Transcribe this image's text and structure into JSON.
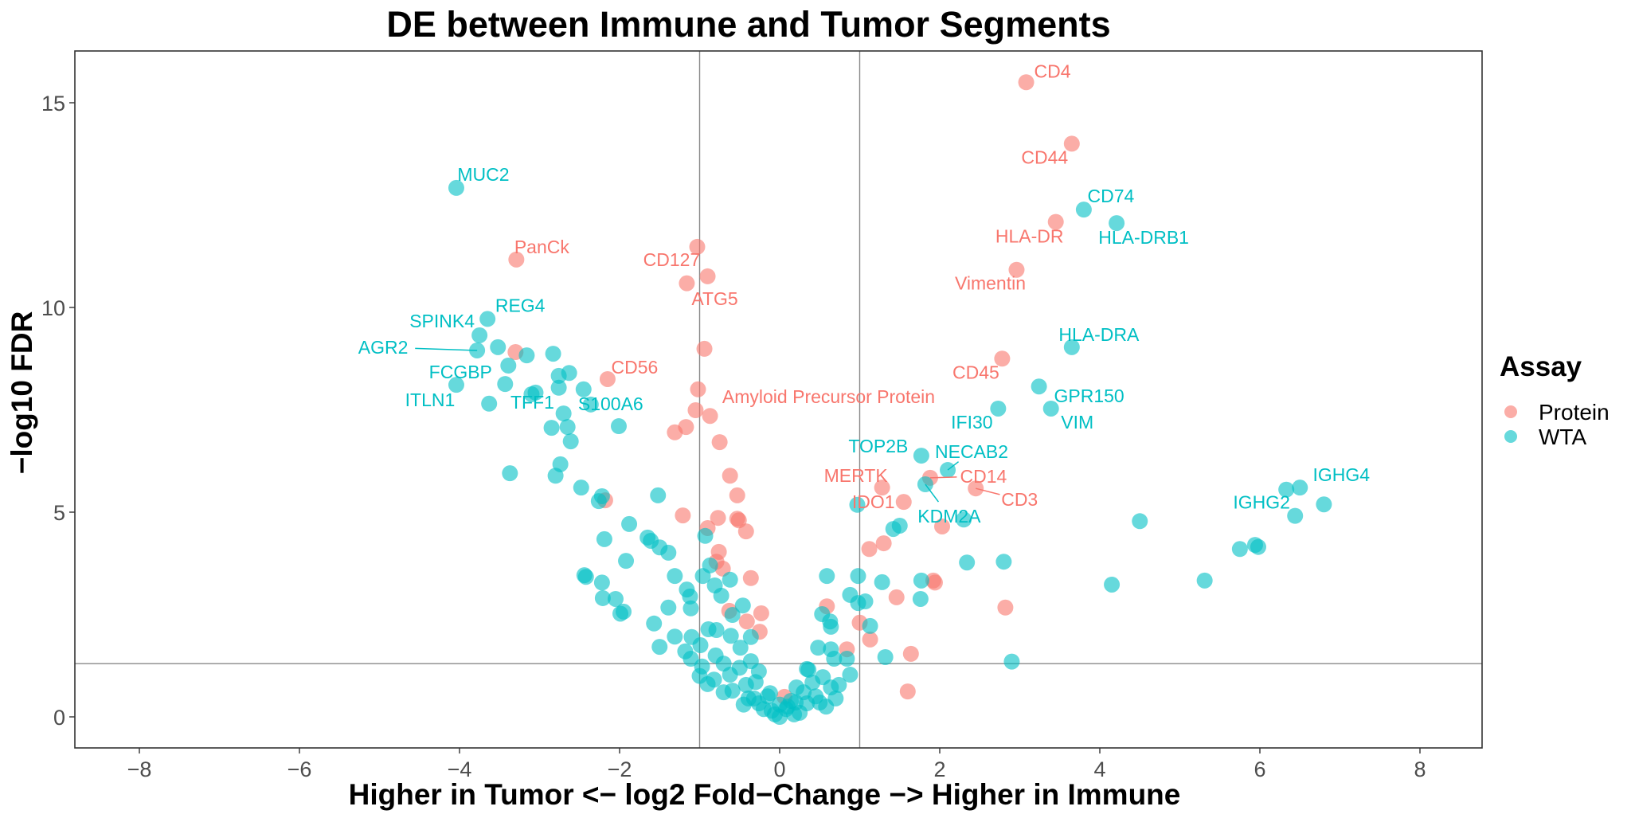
{
  "chart_data": {
    "type": "scatter",
    "title": "DE between Immune and Tumor Segments",
    "xlabel": "Higher in Tumor <− log2 Fold−Change −> Higher in Immune",
    "ylabel": "−log10 FDR",
    "xlim": [
      -8.8,
      8.78
    ],
    "ylim": [
      -0.76,
      16.26
    ],
    "xticks": [
      -8,
      -6,
      -4,
      -2,
      0,
      2,
      4,
      6,
      8
    ],
    "xtick_labels": [
      "−8",
      "−6",
      "−4",
      "−2",
      "0",
      "2",
      "4",
      "6",
      "8"
    ],
    "yticks": [
      0,
      5,
      10,
      15
    ],
    "ytick_labels": [
      "0",
      "5",
      "10",
      "15"
    ],
    "grid": false,
    "vlines": [
      -1,
      1
    ],
    "hline": 1.3,
    "legend": {
      "title": "Assay",
      "placement": "right",
      "entries": [
        "Protein",
        "WTA"
      ]
    },
    "series": [
      {
        "name": "Protein",
        "color": "#F8766D",
        "points": [
          [
            3.08,
            15.5,
            "CD4"
          ],
          [
            3.65,
            14.0,
            "CD44"
          ],
          [
            3.45,
            12.09,
            "HLA-DR"
          ],
          [
            2.96,
            10.92,
            "Vimentin"
          ],
          [
            2.78,
            8.75,
            "CD45"
          ],
          [
            -3.29,
            11.17,
            "PanCk"
          ],
          [
            -1.03,
            11.48,
            "CD127"
          ],
          [
            -0.9,
            10.76,
            "ATG5"
          ],
          [
            -1.16,
            10.59
          ],
          [
            -0.94,
            8.99
          ],
          [
            -2.15,
            8.25,
            "CD56"
          ],
          [
            -3.3,
            8.91
          ],
          [
            -1.02,
            8.0,
            "Amyloid Precursor Protein"
          ],
          [
            -1.05,
            7.49
          ],
          [
            -0.87,
            7.35
          ],
          [
            -1.17,
            7.08
          ],
          [
            -1.31,
            6.95
          ],
          [
            -0.75,
            6.71
          ],
          [
            -0.62,
            5.89
          ],
          [
            -0.53,
            5.41
          ],
          [
            -2.18,
            5.29
          ],
          [
            -1.21,
            4.92
          ],
          [
            -0.77,
            4.86
          ],
          [
            -0.53,
            4.84
          ],
          [
            -0.51,
            4.8
          ],
          [
            -0.9,
            4.61
          ],
          [
            -0.42,
            4.53
          ],
          [
            -0.76,
            4.03
          ],
          [
            -0.79,
            3.79
          ],
          [
            -0.71,
            3.62
          ],
          [
            -0.36,
            3.39
          ],
          [
            -0.63,
            2.59
          ],
          [
            -0.23,
            2.53
          ],
          [
            -0.41,
            2.33
          ],
          [
            -0.25,
            2.08
          ],
          [
            0.06,
            0.49
          ],
          [
            1.28,
            5.6,
            "MERTK"
          ],
          [
            1.55,
            5.25,
            "IDO1"
          ],
          [
            1.88,
            5.84,
            "CD14"
          ],
          [
            2.45,
            5.58,
            "CD3"
          ],
          [
            2.03,
            4.65
          ],
          [
            1.3,
            4.24
          ],
          [
            1.12,
            4.1
          ],
          [
            1.92,
            3.33
          ],
          [
            1.94,
            3.28
          ],
          [
            1.46,
            2.92
          ],
          [
            0.59,
            2.7
          ],
          [
            1.0,
            2.3
          ],
          [
            1.13,
            1.89
          ],
          [
            1.64,
            1.54
          ],
          [
            1.6,
            0.62
          ],
          [
            0.84,
            1.65
          ],
          [
            2.82,
            2.67
          ]
        ]
      },
      {
        "name": "WTA",
        "color": "#00BFC4",
        "points": [
          [
            -4.04,
            12.92,
            "MUC2"
          ],
          [
            -3.65,
            9.72,
            "REG4"
          ],
          [
            -3.75,
            9.32,
            "SPINK4"
          ],
          [
            -3.78,
            8.95,
            "AGR2"
          ],
          [
            -3.43,
            8.13,
            "FCGBP"
          ],
          [
            -4.04,
            8.11,
            "ITLN1"
          ],
          [
            -3.05,
            7.92,
            "TFF1"
          ],
          [
            -2.36,
            7.63,
            "S100A6"
          ],
          [
            3.8,
            12.39,
            "CD74"
          ],
          [
            4.21,
            12.06,
            "HLA-DRB1"
          ],
          [
            3.65,
            9.03,
            "HLA-DRA"
          ],
          [
            3.24,
            8.07,
            "GPR150"
          ],
          [
            3.39,
            7.53,
            "VIM"
          ],
          [
            2.73,
            7.53,
            "IFI30"
          ],
          [
            1.77,
            6.38,
            "TOP2B"
          ],
          [
            2.1,
            6.03,
            "NECAB2"
          ],
          [
            1.82,
            5.68,
            "KDM2A"
          ],
          [
            6.5,
            5.6,
            "IGHG4"
          ],
          [
            6.33,
            5.55,
            "IGHG2"
          ],
          [
            -3.52,
            9.03
          ],
          [
            -3.16,
            8.83
          ],
          [
            -2.83,
            8.87
          ],
          [
            -3.39,
            8.58
          ],
          [
            -2.76,
            8.33
          ],
          [
            -2.63,
            8.4
          ],
          [
            -2.76,
            8.04
          ],
          [
            -3.1,
            7.88
          ],
          [
            -2.45,
            8.0
          ],
          [
            -3.63,
            7.65
          ],
          [
            -2.7,
            7.41
          ],
          [
            -2.85,
            7.06
          ],
          [
            -2.65,
            7.08
          ],
          [
            -2.01,
            7.1
          ],
          [
            -2.61,
            6.73
          ],
          [
            -3.37,
            5.95
          ],
          [
            -2.74,
            6.17
          ],
          [
            -2.8,
            5.89
          ],
          [
            -2.48,
            5.6
          ],
          [
            -2.22,
            5.39
          ],
          [
            -2.26,
            5.27
          ],
          [
            -1.52,
            5.41
          ],
          [
            -1.88,
            4.71
          ],
          [
            -2.19,
            4.34
          ],
          [
            -1.65,
            4.38
          ],
          [
            -1.61,
            4.3
          ],
          [
            -1.5,
            4.14
          ],
          [
            -1.39,
            4.01
          ],
          [
            -1.92,
            3.81
          ],
          [
            -2.44,
            3.46
          ],
          [
            -2.42,
            3.42
          ],
          [
            -2.22,
            3.28
          ],
          [
            -2.21,
            2.9
          ],
          [
            -2.05,
            2.88
          ],
          [
            -1.99,
            2.52
          ],
          [
            -0.93,
            4.42
          ],
          [
            -0.87,
            3.7
          ],
          [
            -1.31,
            3.44
          ],
          [
            -0.96,
            3.44
          ],
          [
            -0.62,
            3.35
          ],
          [
            -0.81,
            3.21
          ],
          [
            -1.16,
            3.11
          ],
          [
            -0.73,
            2.96
          ],
          [
            -1.12,
            2.94
          ],
          [
            -1.39,
            2.67
          ],
          [
            -1.11,
            2.65
          ],
          [
            -1.95,
            2.57
          ],
          [
            -0.46,
            2.72
          ],
          [
            -0.59,
            2.49
          ],
          [
            -1.57,
            2.28
          ],
          [
            -0.36,
            1.95
          ],
          [
            -1.31,
            1.96
          ],
          [
            -1.5,
            1.71
          ],
          [
            -1.18,
            1.6
          ],
          [
            -1.1,
            1.95
          ],
          [
            -0.89,
            2.14
          ],
          [
            -0.79,
            2.12
          ],
          [
            -0.61,
            1.98
          ],
          [
            -0.49,
            1.69
          ],
          [
            -0.99,
            1.75
          ],
          [
            -1.11,
            1.42
          ],
          [
            -0.97,
            1.23
          ],
          [
            -0.82,
            0.91
          ],
          [
            -0.62,
            1.03
          ],
          [
            -0.36,
            1.36
          ],
          [
            -0.26,
            1.11
          ],
          [
            -0.59,
            0.64
          ],
          [
            -0.42,
            0.78
          ],
          [
            -0.32,
            0.45
          ],
          [
            -0.2,
            0.19
          ],
          [
            0,
            0
          ],
          [
            0.18,
            0.06
          ],
          [
            0.34,
            0.33
          ],
          [
            0.21,
            0.72
          ],
          [
            0.34,
            1.17
          ],
          [
            0.41,
            0.84
          ],
          [
            0.54,
            0.97
          ],
          [
            0.64,
            0.72
          ],
          [
            0.58,
            0.25
          ],
          [
            0.74,
            0.78
          ],
          [
            0.88,
            1.03
          ],
          [
            0.84,
            1.42
          ],
          [
            0.68,
            1.42
          ],
          [
            0.64,
            1.65
          ],
          [
            0.48,
            1.69
          ],
          [
            -0.12,
            0.58
          ],
          [
            0.08,
            0.19
          ],
          [
            -0.06,
            0.06
          ],
          [
            -0.26,
            0.33
          ],
          [
            -0.39,
            0.45
          ],
          [
            0.14,
            0.39
          ],
          [
            -0.7,
            1.3
          ],
          [
            -0.5,
            1.2
          ],
          [
            -0.8,
            1.5
          ],
          [
            -1.0,
            1.0
          ],
          [
            -0.9,
            0.8
          ],
          [
            -0.7,
            0.6
          ],
          [
            -0.45,
            0.3
          ],
          [
            0.25,
            0.1
          ],
          [
            0.45,
            0.5
          ],
          [
            0.3,
            0.6
          ],
          [
            0.1,
            0.25
          ],
          [
            -0.1,
            0.15
          ],
          [
            0.2,
            0.35
          ],
          [
            0.5,
            0.35
          ],
          [
            0.7,
            0.45
          ],
          [
            -0.3,
            0.85
          ],
          [
            -0.15,
            0.5
          ],
          [
            0.0,
            0.3
          ],
          [
            0.97,
            5.18
          ],
          [
            1.42,
            4.59
          ],
          [
            1.5,
            4.67
          ],
          [
            2.3,
            4.82
          ],
          [
            0.59,
            3.44
          ],
          [
            0.98,
            3.44
          ],
          [
            1.28,
            3.29
          ],
          [
            1.77,
            3.33
          ],
          [
            1.76,
            2.88
          ],
          [
            0.88,
            2.98
          ],
          [
            0.98,
            2.78
          ],
          [
            1.07,
            2.82
          ],
          [
            0.53,
            2.51
          ],
          [
            0.63,
            2.33
          ],
          [
            0.64,
            2.2
          ],
          [
            1.13,
            2.22
          ],
          [
            1.32,
            1.46
          ],
          [
            0.36,
            1.15
          ],
          [
            2.34,
            3.77
          ],
          [
            2.8,
            3.79
          ],
          [
            2.9,
            1.35
          ],
          [
            6.8,
            5.19
          ],
          [
            6.44,
            4.91
          ],
          [
            4.5,
            4.78
          ],
          [
            5.94,
            4.2
          ],
          [
            5.98,
            4.15
          ],
          [
            5.75,
            4.1
          ],
          [
            5.31,
            3.33
          ],
          [
            4.15,
            3.23
          ]
        ]
      }
    ]
  }
}
